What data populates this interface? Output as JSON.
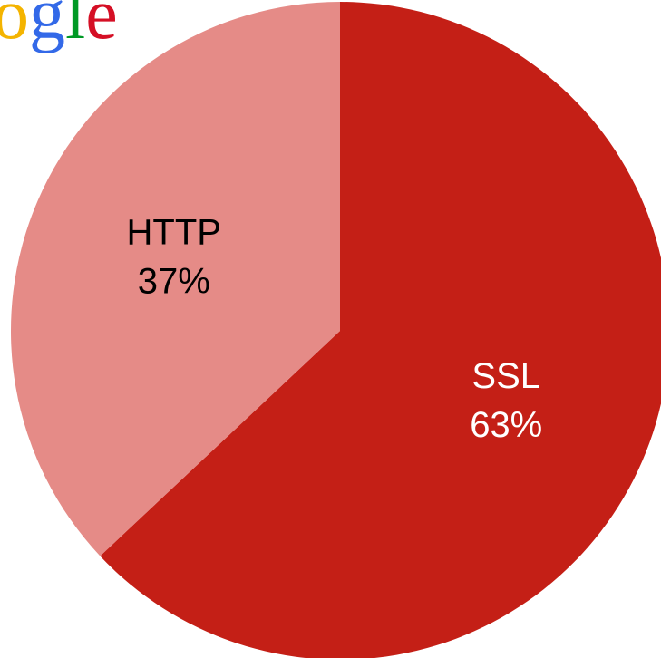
{
  "logo": {
    "text": "ogle",
    "colors": [
      "#f4b400",
      "#3369e8",
      "#009925",
      "#d50f25"
    ]
  },
  "chart_data": {
    "type": "pie",
    "categories": [
      "SSL",
      "HTTP"
    ],
    "values": [
      63,
      37
    ],
    "value_labels": [
      "63%",
      "37%"
    ],
    "colors": [
      "#c41f16",
      "#e58b87"
    ],
    "label_colors": [
      "#ffffff",
      "#000000"
    ]
  }
}
